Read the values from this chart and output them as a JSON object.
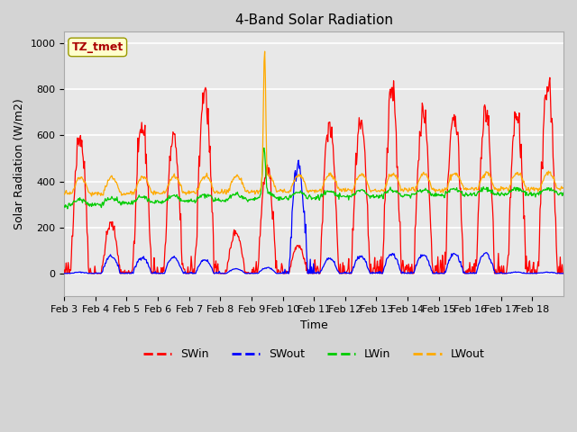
{
  "title": "4-Band Solar Radiation",
  "xlabel": "Time",
  "ylabel": "Solar Radiation (W/m2)",
  "ylim": [
    -100,
    1050
  ],
  "annotation": "TZ_tmet",
  "legend": [
    "SWin",
    "SWout",
    "LWin",
    "LWout"
  ],
  "legend_colors": [
    "#ff0000",
    "#0000ff",
    "#00cc00",
    "#ffaa00"
  ],
  "line_colors": {
    "SWin": "#ff0000",
    "SWout": "#0000ff",
    "LWin": "#00cc00",
    "LWout": "#ffaa00"
  },
  "x_tick_labels": [
    "Feb 3",
    "Feb 4",
    "Feb 5",
    "Feb 6",
    "Feb 7",
    "Feb 8",
    "Feb 9",
    "Feb 10",
    "Feb 11",
    "Feb 12",
    "Feb 13",
    "Feb 14",
    "Feb 15",
    "Feb 16",
    "Feb 17",
    "Feb 18"
  ],
  "plot_bg_color": "#e8e8e8",
  "fig_bg_color": "#d4d4d4"
}
